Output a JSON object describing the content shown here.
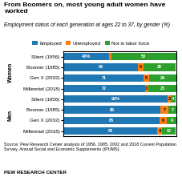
{
  "chart_data": {
    "type": "bar",
    "orientation": "horizontal",
    "stacked": true,
    "data_labels": true,
    "tick_labels": "y",
    "legend": "upper center",
    "title": "From Boomers on, most young adult women have\nworked",
    "subtitle": "Employment status of each generation at ages 22 to 37, by gender (%)",
    "categories": [
      "Silent (1956)",
      "Boomer (1985)",
      "Gen X (2002)",
      "Millennial (2018)",
      "Silent (1956)",
      "Boomer (1985)",
      "Gen X (2002)",
      "Millennial (2018)"
    ],
    "groups": [
      {
        "name": "Women",
        "count": 4
      },
      {
        "name": "Men",
        "count": 4
      }
    ],
    "xlim": [
      0,
      100
    ],
    "series": [
      {
        "name": "Employed",
        "values": [
          40,
          66,
          71,
          72,
          92,
          86,
          85,
          83
        ],
        "value_labels": [
          "40%",
          "66",
          "71",
          "72",
          "92%",
          "86",
          "85",
          "83"
        ]
      },
      {
        "name": "Unemployed",
        "values": [
          2,
          5,
          5,
          3,
          3,
          7,
          6,
          4
        ],
        "value_labels": [
          null,
          "5",
          "5",
          "3",
          "3",
          "7",
          "6",
          "4"
        ]
      },
      {
        "name": "Not in labor force",
        "values": [
          58,
          28,
          24,
          25,
          4,
          7,
          9,
          12
        ]
      }
    ],
    "source": "Source: Pew Research Center analysis of 1956, 1985, 2002 and 2018 Current Population\nSurvey, Annual Social and Economic Supplements (IPUMS).",
    "footer": "PEW RESEARCH CENTER"
  }
}
